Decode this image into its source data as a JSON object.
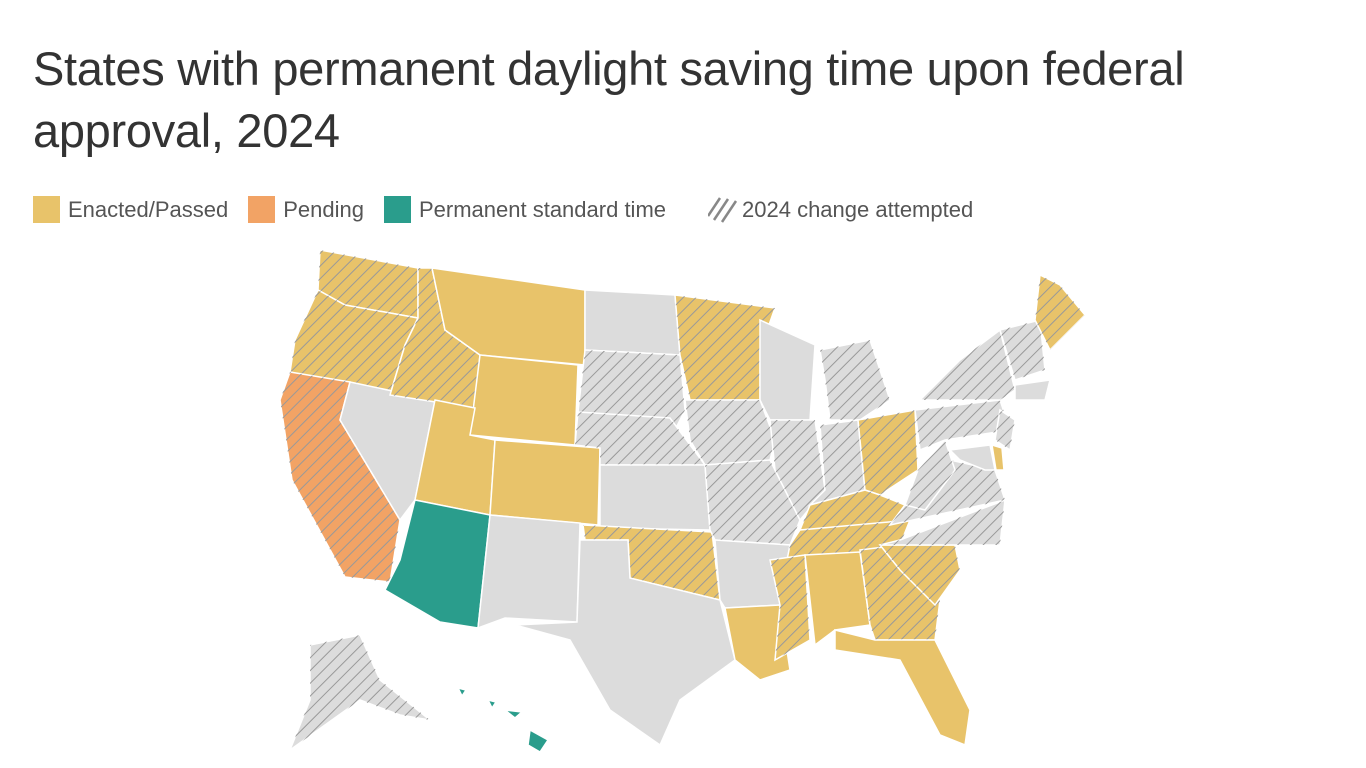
{
  "title": "States with permanent daylight saving time upon federal approval, 2024",
  "legend": {
    "enacted": {
      "label": "Enacted/Passed",
      "color": "#e8c36a"
    },
    "pending": {
      "label": "Pending",
      "color": "#f2a365"
    },
    "standard": {
      "label": "Permanent standard time",
      "color": "#2a9d8c"
    },
    "attempted": {
      "label": "2024 change attempted"
    }
  },
  "colors": {
    "none": "#dcdcdc",
    "hatch": "#999999",
    "border": "#ffffff"
  },
  "states": {
    "WA": {
      "status": "enacted",
      "attempted": true
    },
    "OR": {
      "status": "enacted",
      "attempted": true
    },
    "CA": {
      "status": "pending",
      "attempted": true
    },
    "NV": {
      "status": "none",
      "attempted": false
    },
    "ID": {
      "status": "enacted",
      "attempted": true
    },
    "MT": {
      "status": "enacted",
      "attempted": false
    },
    "WY": {
      "status": "enacted",
      "attempted": false
    },
    "UT": {
      "status": "enacted",
      "attempted": false
    },
    "CO": {
      "status": "enacted",
      "attempted": false
    },
    "AZ": {
      "status": "standard",
      "attempted": false
    },
    "NM": {
      "status": "none",
      "attempted": false
    },
    "ND": {
      "status": "none",
      "attempted": false
    },
    "SD": {
      "status": "none",
      "attempted": true
    },
    "NE": {
      "status": "none",
      "attempted": true
    },
    "KS": {
      "status": "none",
      "attempted": false
    },
    "OK": {
      "status": "enacted",
      "attempted": true
    },
    "TX": {
      "status": "none",
      "attempted": false
    },
    "MN": {
      "status": "enacted",
      "attempted": true
    },
    "IA": {
      "status": "none",
      "attempted": true
    },
    "MO": {
      "status": "none",
      "attempted": true
    },
    "AR": {
      "status": "none",
      "attempted": false
    },
    "LA": {
      "status": "enacted",
      "attempted": false
    },
    "WI": {
      "status": "none",
      "attempted": false
    },
    "IL": {
      "status": "none",
      "attempted": true
    },
    "MI": {
      "status": "none",
      "attempted": true
    },
    "IN": {
      "status": "none",
      "attempted": true
    },
    "OH": {
      "status": "enacted",
      "attempted": true
    },
    "KY": {
      "status": "enacted",
      "attempted": true
    },
    "TN": {
      "status": "enacted",
      "attempted": true
    },
    "MS": {
      "status": "enacted",
      "attempted": true
    },
    "AL": {
      "status": "enacted",
      "attempted": false
    },
    "GA": {
      "status": "enacted",
      "attempted": true
    },
    "FL": {
      "status": "enacted",
      "attempted": false
    },
    "SC": {
      "status": "enacted",
      "attempted": true
    },
    "NC": {
      "status": "none",
      "attempted": true
    },
    "VA": {
      "status": "none",
      "attempted": true
    },
    "WV": {
      "status": "none",
      "attempted": true
    },
    "PA": {
      "status": "none",
      "attempted": true
    },
    "NY": {
      "status": "none",
      "attempted": true
    },
    "VTNH": {
      "status": "none",
      "attempted": true
    },
    "MA": {
      "status": "none",
      "attempted": false
    },
    "ME": {
      "status": "enacted",
      "attempted": true
    },
    "NJ": {
      "status": "none",
      "attempted": true
    },
    "MD": {
      "status": "none",
      "attempted": false
    },
    "DE": {
      "status": "enacted",
      "attempted": false
    },
    "AK": {
      "status": "none",
      "attempted": true
    },
    "HI": {
      "status": "standard",
      "attempted": false
    }
  }
}
